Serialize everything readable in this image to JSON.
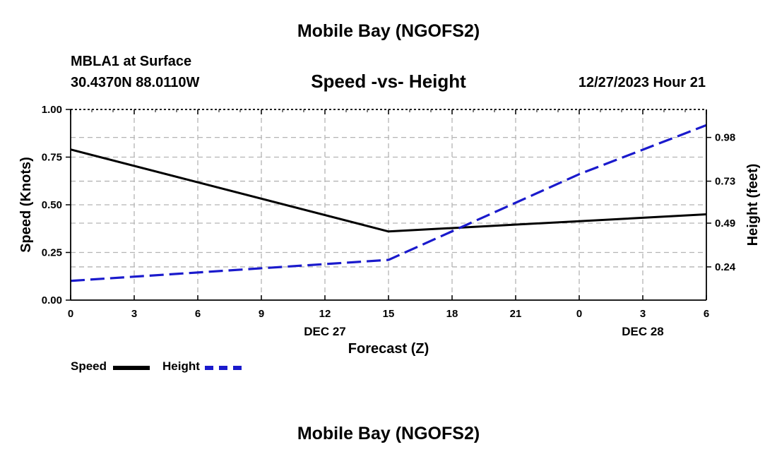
{
  "header": {
    "title": "Mobile Bay (NGOFS2)",
    "station": "MBLA1 at Surface",
    "coords": "30.4370N  88.0110W",
    "subtitle": "Speed -vs- Height",
    "datetime": "12/27/2023 Hour 21"
  },
  "footer": {
    "title": "Mobile Bay (NGOFS2)"
  },
  "legend": {
    "speed_label": "Speed",
    "height_label": "Height"
  },
  "colors": {
    "speed": "#000000",
    "height": "#1a1acc",
    "grid": "#b4b4b4"
  },
  "chart_data": {
    "type": "line",
    "title": "Speed -vs- Height",
    "xlabel": "Forecast (Z)",
    "ylabel": "Speed (Knots)",
    "y2label": "Height (feet)",
    "x": [
      0,
      3,
      6,
      9,
      12,
      15,
      18,
      21,
      24,
      27,
      30
    ],
    "xlim": [
      0,
      30
    ],
    "x_tick_labels": [
      "0",
      "3",
      "6",
      "9",
      "12",
      "15",
      "18",
      "21",
      "0",
      "3",
      "6"
    ],
    "date_labels": [
      {
        "text": "DEC 27",
        "x": 12
      },
      {
        "text": "DEC 28",
        "x": 27
      }
    ],
    "ylim": [
      0,
      1
    ],
    "y_ticks": [
      0,
      0.25,
      0.5,
      0.75,
      1.0
    ],
    "y_tick_labels": [
      "0.00",
      "0.25",
      "0.50",
      "0.75",
      "1.00"
    ],
    "y2_ticks": [
      0.24,
      0.49,
      0.73,
      0.98
    ],
    "y2lim": [
      0.05,
      1.14
    ],
    "grid": true,
    "legend_position": "bottom-left",
    "series": [
      {
        "name": "Speed",
        "axis": "left",
        "style": "solid",
        "points": [
          [
            0,
            0.79
          ],
          [
            15,
            0.36
          ],
          [
            30,
            0.45
          ]
        ]
      },
      {
        "name": "Height",
        "axis": "right",
        "style": "dashed",
        "points": [
          [
            0,
            0.16
          ],
          [
            15,
            0.28
          ],
          [
            24,
            0.77
          ],
          [
            30,
            1.05
          ]
        ]
      }
    ]
  }
}
